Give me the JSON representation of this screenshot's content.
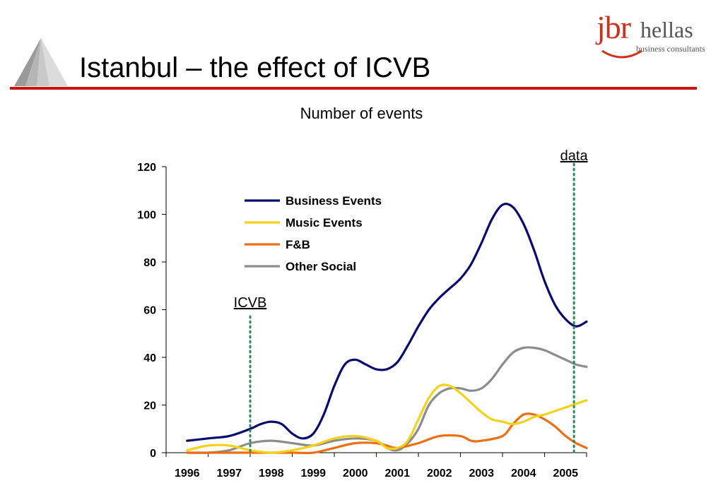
{
  "slide": {
    "title": "Istanbul – the effect of ICVB",
    "brand_name": "jbr",
    "brand_suffix": "hellas",
    "brand_tagline": "business consultants"
  },
  "chart_data": {
    "type": "line",
    "title": "Number of events",
    "xlabel": "",
    "ylabel": "",
    "ylim": [
      0,
      120
    ],
    "yticks": [
      0,
      20,
      40,
      60,
      80,
      100,
      120
    ],
    "xlim": [
      1996,
      2006
    ],
    "xtick_labels": [
      "1996",
      "1997",
      "1998",
      "1999",
      "2000",
      "2001",
      "2002",
      "2003",
      "2004",
      "2005"
    ],
    "grid": false,
    "legend_position": "top-center",
    "series": [
      {
        "name": "Business Events",
        "color": "#0a0a6e",
        "x": [
          1996.5,
          1997,
          1997.5,
          1998,
          1998.25,
          1998.5,
          1998.75,
          1999,
          1999.25,
          1999.5,
          1999.75,
          2000,
          2000.25,
          2000.5,
          2000.75,
          2001,
          2001.25,
          2001.5,
          2001.75,
          2002,
          2002.25,
          2002.5,
          2002.75,
          2003,
          2003.25,
          2003.5,
          2003.75,
          2004,
          2004.25,
          2004.5,
          2004.75,
          2005,
          2005.25,
          2005.5,
          2005.75,
          2006
        ],
        "y": [
          5,
          6,
          7,
          10,
          12,
          13,
          12,
          8,
          6,
          8,
          16,
          28,
          37,
          39,
          37,
          35,
          35,
          38,
          45,
          53,
          60,
          65,
          69,
          73,
          79,
          88,
          98,
          104,
          103,
          96,
          85,
          72,
          62,
          56,
          53,
          55
        ]
      },
      {
        "name": "Music Events",
        "color": "#f5d21a",
        "x": [
          1996.5,
          1997,
          1997.5,
          1998,
          1998.5,
          1999,
          1999.5,
          2000,
          2000.5,
          2001,
          2001.25,
          2001.5,
          2001.75,
          2002,
          2002.25,
          2002.5,
          2002.75,
          2003,
          2003.25,
          2003.5,
          2003.75,
          2004,
          2004.25,
          2004.5,
          2004.75,
          2005,
          2005.5,
          2006
        ],
        "y": [
          1,
          3,
          3,
          1,
          0,
          1,
          3,
          6,
          7,
          5,
          2,
          2,
          5,
          14,
          23,
          28,
          28,
          25,
          21,
          17,
          14,
          13,
          12,
          13,
          15,
          16,
          19,
          22
        ]
      },
      {
        "name": "F&B",
        "color": "#ee6e14",
        "x": [
          1996.5,
          1997,
          1997.5,
          1998,
          1998.5,
          1999,
          1999.5,
          2000,
          2000.5,
          2001,
          2001.25,
          2001.5,
          2002,
          2002.5,
          2003,
          2003.25,
          2003.5,
          2004,
          2004.25,
          2004.5,
          2004.75,
          2005,
          2005.25,
          2005.5,
          2005.75,
          2006
        ],
        "y": [
          0,
          0,
          0,
          0,
          0,
          0,
          0,
          2,
          4,
          4,
          3,
          2,
          4,
          7,
          7,
          5,
          5,
          7,
          12,
          16,
          16,
          14,
          11,
          7,
          4,
          2
        ]
      },
      {
        "name": "Other Social",
        "color": "#8c8c8c",
        "x": [
          1996.5,
          1997,
          1997.5,
          1998,
          1998.5,
          1999,
          1999.5,
          2000,
          2000.5,
          2001,
          2001.25,
          2001.5,
          2001.75,
          2002,
          2002.25,
          2002.5,
          2002.75,
          2003,
          2003.25,
          2003.5,
          2003.75,
          2004,
          2004.25,
          2004.5,
          2004.75,
          2005,
          2005.25,
          2005.5,
          2005.75,
          2006
        ],
        "y": [
          0,
          0,
          1,
          4,
          5,
          4,
          3,
          5,
          6,
          5,
          2,
          1,
          4,
          10,
          20,
          25,
          27,
          27,
          26,
          27,
          31,
          37,
          42,
          44,
          44,
          43,
          41,
          39,
          37,
          36
        ]
      }
    ],
    "annotations": [
      {
        "label": "ICVB",
        "x": 1998.0
      },
      {
        "label": "data",
        "x": 2005.7
      }
    ],
    "marker_line_color": "#2e8b57"
  }
}
